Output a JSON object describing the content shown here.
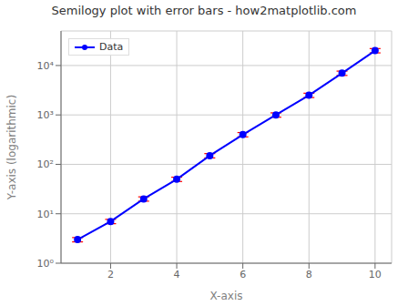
{
  "chart_data": {
    "type": "line",
    "title": "Semilogy plot with error bars - how2matplotlib.com",
    "x_label": "X-axis",
    "y_label": "Y-axis (logarithmic)",
    "x": [
      1,
      2,
      3,
      4,
      5,
      6,
      7,
      8,
      9,
      10
    ],
    "series": [
      {
        "name": "Data",
        "color": "#0000ff",
        "marker": "o",
        "values": [
          3,
          7,
          20,
          50,
          150,
          400,
          1000,
          2500,
          7000,
          20000
        ],
        "error_bars": {
          "values": [
            0.3,
            0.7,
            2,
            5,
            15,
            40,
            100,
            250,
            700,
            2000
          ],
          "color": "#ff0000"
        }
      }
    ],
    "xlim": [
      0.5,
      10.5
    ],
    "xticks": [
      2,
      4,
      6,
      8,
      10
    ],
    "ylim": [
      1.0,
      50000
    ],
    "yticks": [
      {
        "value": 1,
        "label": "10⁰"
      },
      {
        "value": 10,
        "label": "10¹"
      },
      {
        "value": 100,
        "label": "10²"
      },
      {
        "value": 1000,
        "label": "10³"
      },
      {
        "value": 10000,
        "label": "10⁴"
      }
    ],
    "log": "y",
    "grid": true,
    "legend": "upper left"
  }
}
